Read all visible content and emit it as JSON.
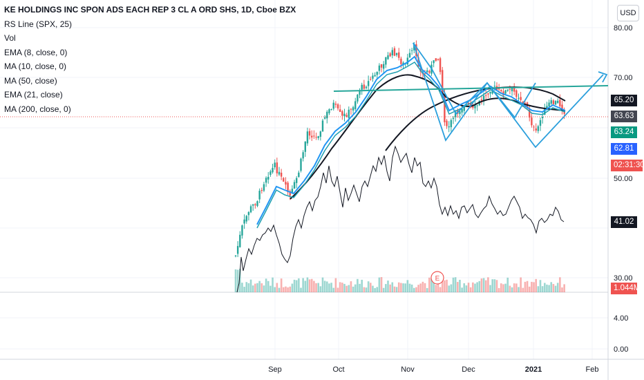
{
  "header": {
    "title": "KE HOLDINGS INC SPON ADS EACH REP 3 CL A ORD SHS, 1D, Cboe BZX",
    "currency": "USD"
  },
  "indicators": [
    "RS Line (SPX, 25)",
    "Vol",
    "EMA (8, close, 0)",
    "MA (10, close, 0)",
    "MA (50, close)",
    "EMA (21, close)",
    "MA (200, close, 0)"
  ],
  "price_axis": {
    "labels": [
      "80.00",
      "70.00",
      "50.00",
      "30.00"
    ]
  },
  "lower_axis": {
    "labels": [
      "4.00",
      "0.00"
    ]
  },
  "time_axis": {
    "labels": [
      "Sep",
      "Oct",
      "Nov",
      "Dec",
      "2021",
      "Feb"
    ]
  },
  "price_tags": [
    {
      "text": "65.20",
      "color": "#131722"
    },
    {
      "text": "63.63",
      "color": "#434651"
    },
    {
      "text": "63.24",
      "color": "#089981"
    },
    {
      "text": "62.81",
      "color": "#2962ff"
    },
    {
      "text": "02:31:30",
      "color": "#ef5350"
    },
    {
      "text": "41.02",
      "color": "#131722"
    },
    {
      "text": "1.044M",
      "color": "#ef5350"
    }
  ],
  "event_marker": "E",
  "colors": {
    "up": "#26a69a",
    "down": "#ef5350",
    "ema8": "#2196f3",
    "ma10": "#1f9fb0",
    "ma50": "#131722",
    "rs": "#131722",
    "drawing": "#2b9fdc",
    "trendline": "#26a69a"
  }
}
